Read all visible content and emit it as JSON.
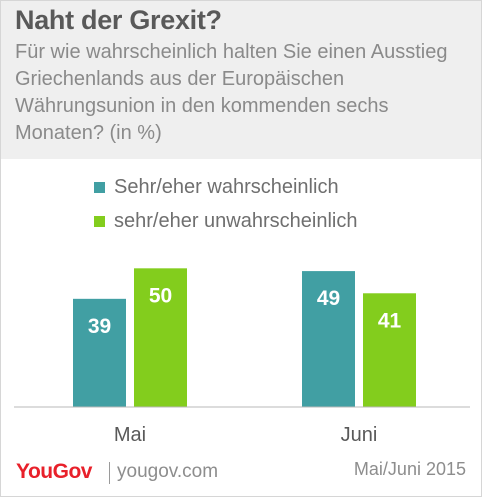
{
  "header": {
    "title": "Naht der Grexit?",
    "subtitle": "Für wie wahrscheinlich halten Sie einen Ausstieg Griechenlands aus der Europäischen Währungsunion in den kommenden sechs Monaten? (in %)"
  },
  "legend": [
    {
      "label": "Sehr/eher wahrscheinlich",
      "color": "#419fa3"
    },
    {
      "label": "sehr/eher unwahrscheinlich",
      "color": "#83cd1d"
    }
  ],
  "footer": {
    "brand": "YouGov",
    "url": "yougov.com",
    "date": "Mai/Juni 2015"
  },
  "chart_data": {
    "type": "bar",
    "title": "Naht der Grexit?",
    "categories": [
      "Mai",
      "Juni"
    ],
    "series": [
      {
        "name": "Sehr/eher wahrscheinlich",
        "color": "#419fa3",
        "values": [
          39,
          49
        ]
      },
      {
        "name": "sehr/eher unwahrscheinlich",
        "color": "#83cd1d",
        "values": [
          50,
          41
        ]
      }
    ],
    "xlabel": "",
    "ylabel": "",
    "ylim": [
      0,
      53
    ],
    "grid": false,
    "legend_position": "top"
  }
}
